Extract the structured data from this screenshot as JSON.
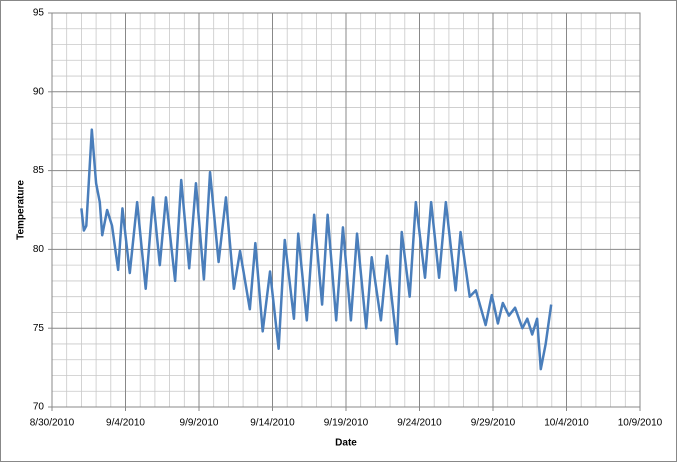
{
  "chart_data": {
    "type": "line",
    "x_label": "Date",
    "y_label": "Temperature",
    "x": [
      "2010-09-01T00:00",
      "2010-09-01T04:00",
      "2010-09-01T08:00",
      "2010-09-01T17:00",
      "2010-09-02T00:00",
      "2010-09-02T06:00",
      "2010-09-02T10:00",
      "2010-09-02T18:00",
      "2010-09-03T02:00",
      "2010-09-03T12:00",
      "2010-09-03T19:00",
      "2010-09-04T07:00",
      "2010-09-04T19:00",
      "2010-09-05T09:00",
      "2010-09-05T21:00",
      "2010-09-06T08:00",
      "2010-09-06T18:00",
      "2010-09-07T09:00",
      "2010-09-07T19:00",
      "2010-09-08T08:00",
      "2010-09-08T19:00",
      "2010-09-09T08:00",
      "2010-09-09T18:00",
      "2010-09-10T08:00",
      "2010-09-10T20:00",
      "2010-09-11T09:00",
      "2010-09-11T19:00",
      "2010-09-12T11:00",
      "2010-09-12T20:00",
      "2010-09-13T08:00",
      "2010-09-13T20:00",
      "2010-09-14T10:00",
      "2010-09-14T20:00",
      "2010-09-15T11:00",
      "2010-09-15T18:00",
      "2010-09-16T08:00",
      "2010-09-16T20:00",
      "2010-09-17T09:00",
      "2010-09-17T18:00",
      "2010-09-18T08:00",
      "2010-09-18T19:00",
      "2010-09-19T08:00",
      "2010-09-19T18:00",
      "2010-09-20T09:00",
      "2010-09-20T18:00",
      "2010-09-21T09:00",
      "2010-09-21T19:00",
      "2010-09-22T11:00",
      "2010-09-22T19:00",
      "2010-09-23T08:00",
      "2010-09-23T18:00",
      "2010-09-24T09:00",
      "2010-09-24T19:00",
      "2010-09-25T08:00",
      "2010-09-25T19:00",
      "2010-09-26T11:00",
      "2010-09-26T19:00",
      "2010-09-27T10:00",
      "2010-09-27T20:00",
      "2010-09-28T12:00",
      "2010-09-28T22:00",
      "2010-09-29T08:00",
      "2010-09-29T16:00",
      "2010-09-30T02:00",
      "2010-09-30T12:00",
      "2010-10-01T00:00",
      "2010-10-01T08:00",
      "2010-10-01T16:00",
      "2010-10-02T00:00",
      "2010-10-02T06:00",
      "2010-10-02T14:00",
      "2010-10-02T23:00"
    ],
    "values": [
      82.6,
      81.2,
      81.5,
      87.6,
      84.2,
      83.0,
      80.9,
      82.5,
      81.5,
      78.7,
      82.6,
      78.5,
      83.0,
      77.5,
      83.3,
      79.0,
      83.3,
      78.0,
      84.4,
      78.8,
      84.2,
      78.1,
      84.9,
      79.2,
      83.3,
      77.5,
      79.9,
      76.2,
      80.4,
      74.8,
      78.6,
      73.7,
      80.6,
      75.6,
      81.0,
      75.5,
      82.2,
      76.5,
      82.2,
      75.5,
      81.4,
      75.5,
      81.0,
      75.0,
      79.5,
      75.5,
      79.6,
      74.0,
      81.1,
      77.0,
      83.0,
      78.2,
      83.0,
      78.2,
      83.0,
      77.4,
      81.1,
      77.0,
      77.4,
      75.2,
      77.1,
      75.3,
      76.6,
      75.8,
      76.3,
      75.0,
      75.6,
      74.6,
      75.6,
      72.4,
      74.0,
      76.5
    ],
    "color": "#4a7ebb",
    "xlim": [
      "2010-08-30",
      "2010-10-09"
    ],
    "xticks": [
      {
        "value": "2010-08-30",
        "label": "8/30/2010"
      },
      {
        "value": "2010-09-04",
        "label": "9/4/2010"
      },
      {
        "value": "2010-09-09",
        "label": "9/9/2010"
      },
      {
        "value": "2010-09-14",
        "label": "9/14/2010"
      },
      {
        "value": "2010-09-19",
        "label": "9/19/2010"
      },
      {
        "value": "2010-09-24",
        "label": "9/24/2010"
      },
      {
        "value": "2010-09-29",
        "label": "9/29/2010"
      },
      {
        "value": "2010-10-04",
        "label": "10/4/2010"
      },
      {
        "value": "2010-10-09",
        "label": "10/9/2010"
      }
    ],
    "ylim": [
      70,
      95
    ],
    "yticks": [
      70,
      75,
      80,
      85,
      90,
      95
    ],
    "grid": true,
    "minor_grid": true
  }
}
